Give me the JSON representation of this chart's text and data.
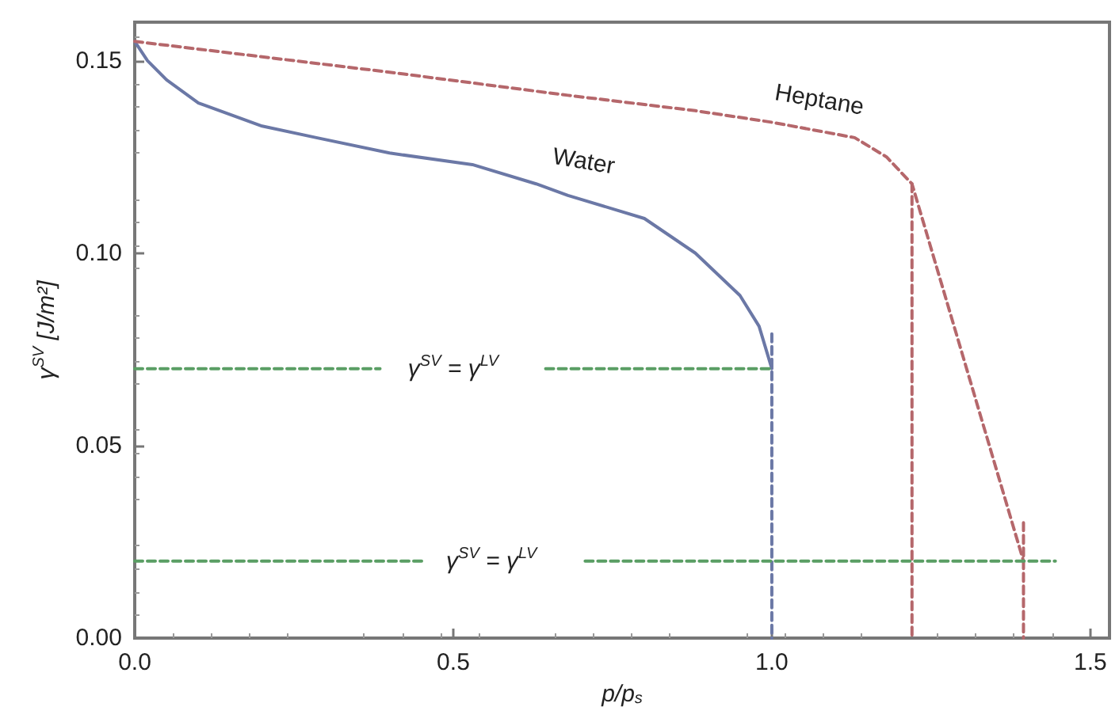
{
  "chart_data": {
    "type": "line",
    "xlabel": "p/p$_{s}$",
    "ylabel": "γ$^{SV}$ [J/m²]",
    "xlim": [
      0,
      1.53
    ],
    "ylim": [
      0,
      0.16
    ],
    "xticks": [
      {
        "value": 0,
        "label": "0.0"
      },
      {
        "value": 0.5,
        "label": "0.5"
      },
      {
        "value": 1.0,
        "label": "1.0"
      },
      {
        "value": 1.5,
        "label": "1.5"
      }
    ],
    "yticks": [
      {
        "value": 0,
        "label": "0.00"
      },
      {
        "value": 0.05,
        "label": "0.05"
      },
      {
        "value": 0.1,
        "label": "0.10"
      },
      {
        "value": 0.15,
        "label": "0.15"
      }
    ],
    "grid": false,
    "series": [
      {
        "name": "Water",
        "color": "#6b78a6",
        "line_style": "solid",
        "x": [
          0,
          0.02,
          0.05,
          0.1,
          0.2,
          0.285,
          0.4,
          0.53,
          0.63,
          0.68,
          0.8,
          0.88,
          0.95,
          0.98,
          1.0
        ],
        "values": [
          0.155,
          0.15,
          0.145,
          0.139,
          0.133,
          0.13,
          0.126,
          0.123,
          0.118,
          0.115,
          0.109,
          0.1,
          0.089,
          0.081,
          0.07
        ]
      },
      {
        "name": "Heptane",
        "color": "#b5676b",
        "line_style": "dashed",
        "x": [
          0,
          0.2,
          0.4,
          0.68,
          0.88,
          1.0,
          1.13,
          1.18,
          1.22,
          1.395
        ],
        "values": [
          0.155,
          0.151,
          0.147,
          0.141,
          0.137,
          0.134,
          0.13,
          0.125,
          0.118,
          0.02
        ]
      },
      {
        "color": "#6b78a6",
        "line_style": "dashed",
        "x": [
          1.0,
          1.0
        ],
        "values": [
          0.079,
          0
        ]
      },
      {
        "color": "#b5676b",
        "line_style": "dashed",
        "x": [
          1.22,
          1.22
        ],
        "values": [
          0.118,
          0
        ]
      },
      {
        "color": "#b5676b",
        "line_style": "dashed",
        "x": [
          1.395,
          1.395
        ],
        "values": [
          0.03,
          0
        ]
      },
      {
        "color": "#5a9e64",
        "line_style": "dashed",
        "x": [
          0,
          0.385,
          0.5,
          0.645,
          1.0
        ],
        "values": [
          0.07,
          0.07,
          null,
          0.07,
          0.07
        ]
      },
      {
        "color": "#5a9e64",
        "line_style": "dashed",
        "x": [
          0,
          0.454,
          0.56,
          0.707,
          1.445
        ],
        "values": [
          0.02,
          0.02,
          null,
          0.02,
          0.02
        ]
      }
    ],
    "annotations": [
      "γ$^{SV}$ = γ$^{LV}$",
      "γ$^{SV}$ = γ$^{LV}$"
    ]
  }
}
